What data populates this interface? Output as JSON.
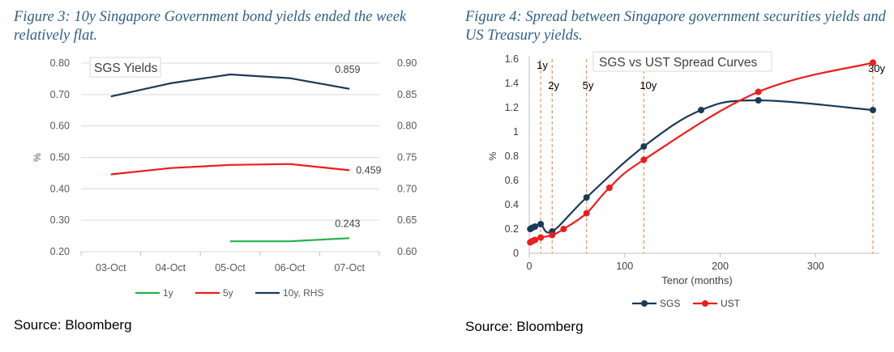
{
  "left": {
    "caption": "Figure 3: 10y Singapore Government bond yields ended the week relatively flat.",
    "source": "Source: Bloomberg"
  },
  "right": {
    "caption": "Figure 4: Spread between Singapore government securities yields and US Treasury yields.",
    "source": "Source: Bloomberg"
  },
  "chart_data": [
    {
      "type": "line",
      "title": "SGS Yields",
      "ylabel": "%",
      "categories": [
        "03-Oct",
        "04-Oct",
        "05-Oct",
        "06-Oct",
        "07-Oct"
      ],
      "ylim": [
        0.2,
        0.8
      ],
      "yticks": [
        "0.80",
        "0.70",
        "0.60",
        "0.50",
        "0.40",
        "0.30",
        "0.20"
      ],
      "y2lim": [
        0.6,
        0.9
      ],
      "y2ticks": [
        "0.90",
        "0.85",
        "0.80",
        "0.75",
        "0.70",
        "0.65",
        "0.60"
      ],
      "grid": true,
      "legend_position": "bottom",
      "series": [
        {
          "name": "1y",
          "color": "#22b14c",
          "axis": "left",
          "values": [
            null,
            null,
            0.233,
            0.233,
            0.243
          ],
          "end_label": "0.243"
        },
        {
          "name": "5y",
          "color": "#ee1c1c",
          "axis": "left",
          "values": [
            0.446,
            0.466,
            0.476,
            0.479,
            0.459
          ],
          "end_label": "0.459"
        },
        {
          "name": "10y, RHS",
          "color": "#1b3a57",
          "axis": "right",
          "values": [
            0.847,
            0.868,
            0.882,
            0.876,
            0.859
          ],
          "end_label": "0.859"
        }
      ]
    },
    {
      "type": "line",
      "title": "SGS vs UST Spread Curves",
      "xlabel": "Tenor (months)",
      "ylabel": "%",
      "xlim": [
        0,
        360
      ],
      "xticks": [
        0,
        100,
        200,
        300
      ],
      "ylim": [
        0,
        1.6
      ],
      "yticks": [
        "1.6",
        "1.4",
        "1.2",
        "1",
        "0.8",
        "0.6",
        "0.4",
        "0.2",
        "0"
      ],
      "legend_position": "bottom",
      "tenor_markers": [
        {
          "label": "1y",
          "x": 12
        },
        {
          "label": "2y",
          "x": 24
        },
        {
          "label": "5y",
          "x": 60
        },
        {
          "label": "10y",
          "x": 120
        },
        {
          "label": "30y",
          "x": 360
        }
      ],
      "series": [
        {
          "name": "SGS",
          "color": "#1b3a57",
          "x": [
            1,
            3,
            6,
            12,
            24,
            60,
            120,
            180,
            240,
            360
          ],
          "y": [
            0.2,
            0.21,
            0.22,
            0.24,
            0.18,
            0.46,
            0.88,
            1.18,
            1.26,
            1.18
          ]
        },
        {
          "name": "UST",
          "color": "#ee1c1c",
          "x": [
            1,
            3,
            6,
            12,
            24,
            36,
            60,
            84,
            120,
            240,
            360
          ],
          "y": [
            0.09,
            0.1,
            0.11,
            0.13,
            0.15,
            0.2,
            0.33,
            0.54,
            0.77,
            1.33,
            1.57
          ]
        }
      ]
    }
  ]
}
